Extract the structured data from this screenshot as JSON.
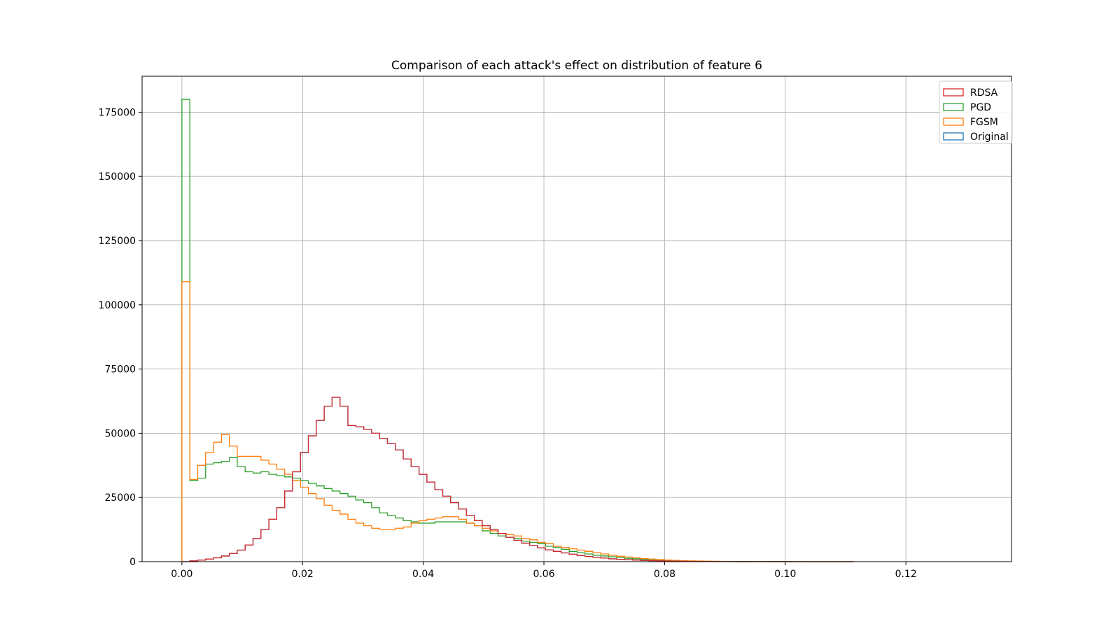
{
  "chart_data": {
    "type": "histogram",
    "title": "Comparison of each attack's effect on distribution of feature 6",
    "xlabel": "",
    "ylabel": "",
    "xlim": [
      -0.0066,
      0.1375
    ],
    "ylim": [
      0,
      189000
    ],
    "grid": true,
    "legend_position": "top-right",
    "x_ticks": [
      0.0,
      0.02,
      0.04,
      0.06,
      0.08,
      0.1,
      0.12
    ],
    "x_tick_labels": [
      "0.00",
      "0.02",
      "0.04",
      "0.06",
      "0.08",
      "0.10",
      "0.12"
    ],
    "y_ticks": [
      0,
      25000,
      50000,
      75000,
      100000,
      125000,
      150000,
      175000
    ],
    "y_tick_labels": [
      "0",
      "25000",
      "50000",
      "75000",
      "100000",
      "125000",
      "150000",
      "175000"
    ],
    "bin_width": 0.00131,
    "legend": [
      {
        "name": "RDSA",
        "color": "#d62728"
      },
      {
        "name": "PGD",
        "color": "#2ca02c"
      },
      {
        "name": "FGSM",
        "color": "#ff7f0e"
      },
      {
        "name": "Original",
        "color": "#1f77b4"
      }
    ],
    "series": [
      {
        "name": "PGD",
        "color": "#2ca02c",
        "values": [
          180000,
          31500,
          32500,
          38000,
          38500,
          39000,
          40500,
          37000,
          35000,
          34500,
          35000,
          34000,
          33500,
          33000,
          32500,
          31500,
          30500,
          29500,
          28500,
          27500,
          26500,
          25500,
          24000,
          23000,
          21000,
          19000,
          18000,
          17000,
          16000,
          15500,
          15000,
          15000,
          15500,
          15500,
          15500,
          15500,
          15000,
          14000,
          12000,
          11000,
          10000,
          9500,
          9000,
          8000,
          7500,
          7000,
          6000,
          5500,
          4800,
          4000,
          3500,
          3000,
          2500,
          2200,
          1900,
          1600,
          1300,
          1100,
          900,
          750,
          600,
          500,
          400,
          320,
          260,
          200,
          160,
          130,
          100,
          80,
          60,
          50,
          40,
          30,
          20,
          15,
          10,
          8,
          6,
          4,
          3,
          2,
          2,
          1,
          1
        ]
      },
      {
        "name": "FGSM",
        "color": "#ff7f0e",
        "values": [
          109000,
          32000,
          37500,
          42500,
          46500,
          49500,
          45000,
          41000,
          41000,
          41000,
          39500,
          38000,
          36000,
          34000,
          31500,
          29000,
          26500,
          24500,
          22000,
          20000,
          18500,
          16500,
          15000,
          14000,
          13000,
          12500,
          12500,
          13000,
          13500,
          15000,
          16000,
          16500,
          17000,
          17500,
          17500,
          16500,
          15000,
          14000,
          13000,
          12000,
          11000,
          10500,
          10000,
          9000,
          8500,
          7500,
          7000,
          6000,
          5500,
          5000,
          4500,
          4000,
          3500,
          3000,
          2500,
          2100,
          1800,
          1500,
          1200,
          1000,
          800,
          650,
          500,
          400,
          300,
          250,
          200,
          150,
          120,
          90,
          70,
          50,
          40,
          30,
          25,
          20,
          15,
          12,
          10,
          8,
          6,
          5,
          4,
          3,
          2
        ]
      },
      {
        "name": "Original",
        "color": "#1f77b4",
        "values": [
          0,
          300,
          600,
          1000,
          1500,
          2200,
          3200,
          4500,
          6500,
          9000,
          12500,
          16500,
          21000,
          27500,
          35000,
          42500,
          49000,
          55000,
          60500,
          64000,
          60500,
          53000,
          52500,
          51500,
          50000,
          48000,
          46000,
          43500,
          40000,
          37000,
          34000,
          31000,
          28000,
          25500,
          23000,
          20500,
          18000,
          16000,
          14000,
          12500,
          11000,
          9500,
          8300,
          7200,
          6300,
          5400,
          4600,
          4000,
          3400,
          2900,
          2400,
          2000,
          1700,
          1400,
          1100,
          900,
          750,
          600,
          480,
          380,
          300,
          230,
          180,
          140,
          110,
          80,
          60,
          45,
          35,
          25,
          18,
          12,
          9,
          6,
          4,
          3,
          2,
          1,
          1,
          0,
          0,
          0,
          0,
          0,
          0
        ]
      },
      {
        "name": "RDSA",
        "color": "#d62728",
        "values": [
          0,
          300,
          600,
          1000,
          1500,
          2200,
          3200,
          4500,
          6500,
          9000,
          12500,
          16500,
          21000,
          27500,
          35000,
          42500,
          49000,
          55000,
          60500,
          64000,
          60500,
          53000,
          52500,
          51500,
          50000,
          48000,
          46000,
          43500,
          40000,
          37000,
          34000,
          31000,
          28000,
          25500,
          23000,
          20500,
          18000,
          16000,
          14000,
          12500,
          11000,
          9500,
          8300,
          7200,
          6300,
          5400,
          4600,
          4000,
          3400,
          2900,
          2400,
          2000,
          1700,
          1400,
          1100,
          900,
          750,
          600,
          480,
          380,
          300,
          230,
          180,
          140,
          110,
          80,
          60,
          45,
          35,
          25,
          18,
          12,
          9,
          6,
          4,
          3,
          2,
          1,
          1,
          0,
          0,
          0,
          0,
          0,
          0
        ]
      }
    ]
  }
}
